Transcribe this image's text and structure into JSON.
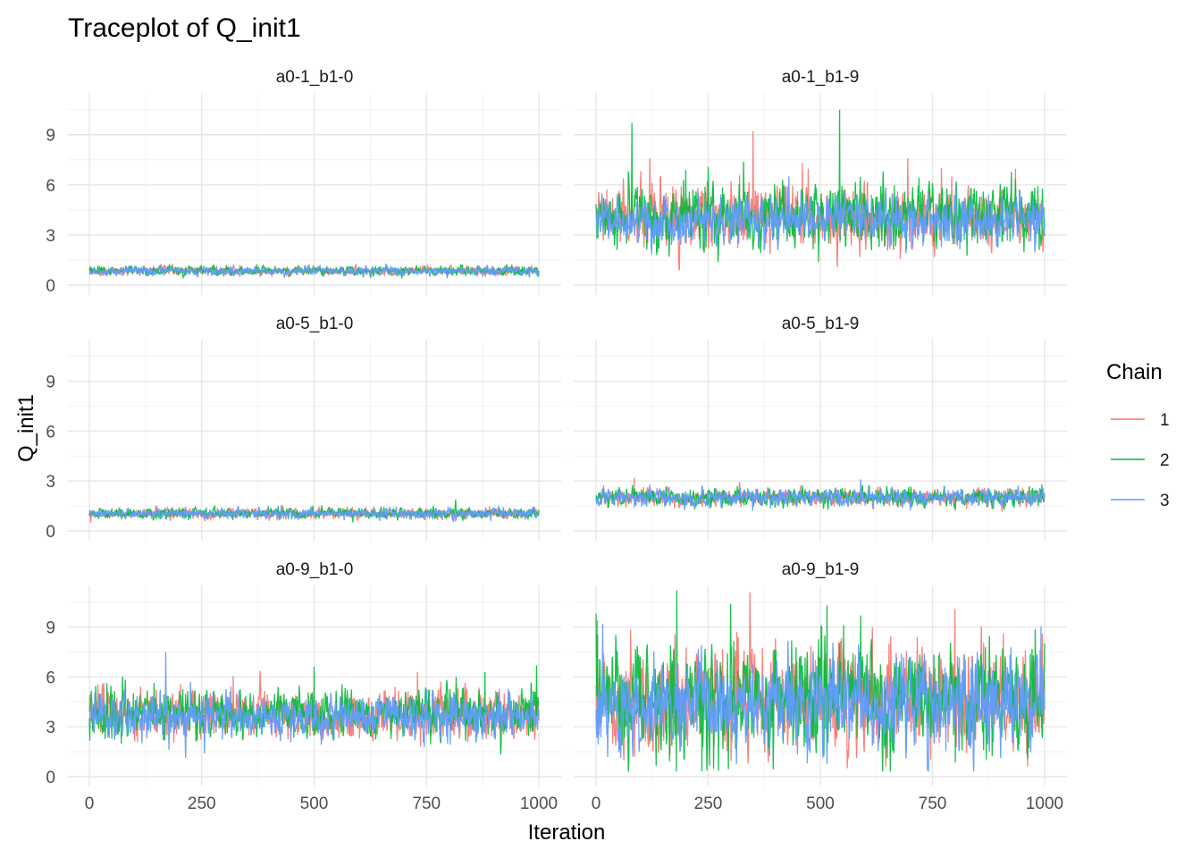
{
  "chart_data": {
    "type": "line",
    "title": "Traceplot of Q_init1",
    "xlabel": "Iteration",
    "ylabel": "Q_init1",
    "xlim": [
      0,
      1000
    ],
    "ylim": [
      0,
      11.5
    ],
    "x_ticks": [
      0,
      250,
      500,
      750,
      1000
    ],
    "y_ticks": [
      0,
      3,
      6,
      9
    ],
    "grid": true,
    "legend": {
      "title": "Chain",
      "position": "right",
      "entries": [
        {
          "label": "1",
          "color": "#F8766D"
        },
        {
          "label": "2",
          "color": "#00BA38"
        },
        {
          "label": "3",
          "color": "#619CFF"
        }
      ]
    },
    "panels": [
      {
        "label": "a0-1_b1-0",
        "mean": 0.85,
        "sd": 0.13,
        "spike_prob": 0.0,
        "spike_size": 0,
        "chains": [
          {
            "name": "1",
            "mean": 0.85,
            "sd": 0.13
          },
          {
            "name": "2",
            "mean": 0.86,
            "sd": 0.14
          },
          {
            "name": "3",
            "mean": 0.84,
            "sd": 0.13
          }
        ]
      },
      {
        "label": "a0-1_b1-9",
        "chains": [
          {
            "name": "1",
            "mean": 4.0,
            "sd": 0.85,
            "spikes": [
              [
                120,
                7.6
              ],
              [
                350,
                9.2
              ],
              [
                460,
                7.3
              ],
              [
                695,
                7.6
              ],
              [
                770,
                7.0
              ]
            ]
          },
          {
            "name": "2",
            "mean": 4.1,
            "sd": 0.9,
            "spikes": [
              [
                80,
                9.7
              ],
              [
                543,
                10.5
              ],
              [
                200,
                6.9
              ],
              [
                640,
                6.8
              ]
            ]
          },
          {
            "name": "3",
            "mean": 3.9,
            "sd": 0.7,
            "spikes": [
              [
                430,
                6.5
              ]
            ]
          }
        ]
      },
      {
        "label": "a0-5_b1-0",
        "chains": [
          {
            "name": "1",
            "mean": 1.05,
            "sd": 0.15
          },
          {
            "name": "2",
            "mean": 1.05,
            "sd": 0.16,
            "spikes": [
              [
                815,
                1.9
              ]
            ]
          },
          {
            "name": "3",
            "mean": 1.05,
            "sd": 0.15
          }
        ]
      },
      {
        "label": "a0-5_b1-9",
        "chains": [
          {
            "name": "1",
            "mean": 2.0,
            "sd": 0.25,
            "spikes": [
              [
                85,
                3.2
              ]
            ]
          },
          {
            "name": "2",
            "mean": 2.0,
            "sd": 0.27
          },
          {
            "name": "3",
            "mean": 2.0,
            "sd": 0.26,
            "spikes": [
              [
                590,
                3.1
              ]
            ]
          }
        ]
      },
      {
        "label": "a0-9_b1-0",
        "chains": [
          {
            "name": "1",
            "mean": 3.7,
            "sd": 0.7,
            "spikes": [
              [
                730,
                6.3
              ]
            ]
          },
          {
            "name": "2",
            "mean": 3.8,
            "sd": 0.75,
            "spikes": [
              [
                500,
                6.6
              ],
              [
                995,
                6.7
              ],
              [
                880,
                6.3
              ]
            ]
          },
          {
            "name": "3",
            "mean": 3.6,
            "sd": 0.65,
            "spikes": [
              [
                170,
                7.5
              ]
            ]
          }
        ]
      },
      {
        "label": "a0-9_b1-9",
        "chains": [
          {
            "name": "1",
            "mean": 4.6,
            "sd": 1.5,
            "spikes": [
              [
                800,
                10.1
              ],
              [
                3,
                9.4
              ],
              [
                995,
                8.6
              ]
            ]
          },
          {
            "name": "2",
            "mean": 4.7,
            "sd": 1.6,
            "spikes": [
              [
                180,
                11.2
              ],
              [
                300,
                10.4
              ],
              [
                515,
                10.3
              ],
              [
                590,
                9.7
              ],
              [
                0,
                9.8
              ]
            ]
          },
          {
            "name": "3",
            "mean": 4.4,
            "sd": 1.4,
            "spikes": [
              [
                15,
                9.2
              ]
            ]
          }
        ]
      }
    ]
  }
}
